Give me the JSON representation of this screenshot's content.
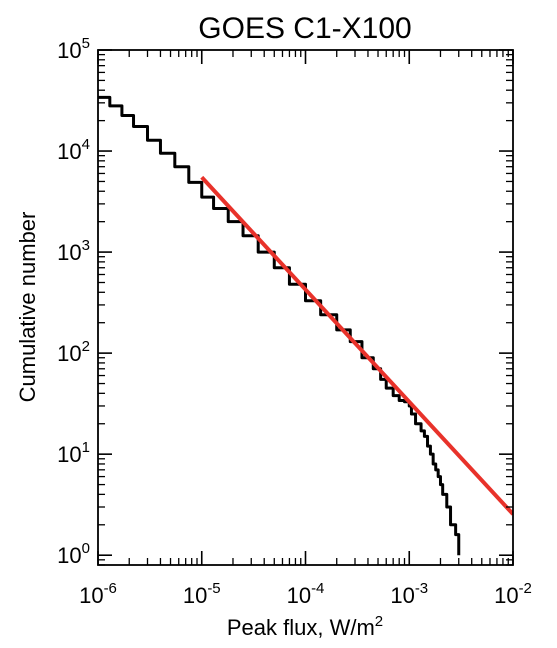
{
  "chart_data": {
    "type": "line",
    "title": "GOES C1-X100",
    "xlabel": "Peak flux, W/m",
    "xlabel_sup": "2",
    "ylabel": "Cumulative number",
    "x_scale": "log",
    "y_scale": "log",
    "xlim": [
      1e-06,
      0.01
    ],
    "ylim": [
      0.8,
      100000
    ],
    "x_ticks": [
      {
        "base": "10",
        "exp": "-6",
        "value": 1e-06
      },
      {
        "base": "10",
        "exp": "-5",
        "value": 1e-05
      },
      {
        "base": "10",
        "exp": "-4",
        "value": 0.0001
      },
      {
        "base": "10",
        "exp": "-3",
        "value": 0.001
      },
      {
        "base": "10",
        "exp": "-2",
        "value": 0.01
      }
    ],
    "y_ticks": [
      {
        "base": "10",
        "exp": "0",
        "value": 1
      },
      {
        "base": "10",
        "exp": "1",
        "value": 10
      },
      {
        "base": "10",
        "exp": "2",
        "value": 100
      },
      {
        "base": "10",
        "exp": "3",
        "value": 1000
      },
      {
        "base": "10",
        "exp": "4",
        "value": 10000
      },
      {
        "base": "10",
        "exp": "5",
        "value": 100000
      }
    ],
    "grid": false,
    "legend": "none",
    "series": [
      {
        "color": "#000000",
        "style": "step",
        "points": [
          [
            1e-06,
            34000
          ],
          [
            1.3e-06,
            28000
          ],
          [
            1.7e-06,
            22500
          ],
          [
            2.2e-06,
            17500
          ],
          [
            3e-06,
            12800
          ],
          [
            4e-06,
            9500
          ],
          [
            5.5e-06,
            7000
          ],
          [
            7.5e-06,
            4900
          ],
          [
            1e-05,
            3500
          ],
          [
            1.3e-05,
            2700
          ],
          [
            1.8e-05,
            2000
          ],
          [
            2.5e-05,
            1450
          ],
          [
            3.5e-05,
            1000
          ],
          [
            5e-05,
            700
          ],
          [
            7e-05,
            480
          ],
          [
            0.0001,
            330
          ],
          [
            0.00014,
            240
          ],
          [
            0.0002,
            170
          ],
          [
            0.00027,
            130
          ],
          [
            0.00035,
            90
          ],
          [
            0.00045,
            70
          ],
          [
            0.00053,
            55
          ],
          [
            0.0006,
            45
          ],
          [
            0.0007,
            38
          ],
          [
            0.0008,
            34
          ],
          [
            0.0009,
            33
          ],
          [
            0.001,
            30
          ],
          [
            0.00105,
            25
          ],
          [
            0.00115,
            20
          ],
          [
            0.0013,
            17
          ],
          [
            0.0014,
            15
          ],
          [
            0.0015,
            12
          ],
          [
            0.0016,
            10
          ],
          [
            0.0017,
            8
          ],
          [
            0.0018,
            7
          ],
          [
            0.0019,
            6
          ],
          [
            0.002,
            5
          ],
          [
            0.0021,
            4
          ],
          [
            0.0023,
            3
          ],
          [
            0.0025,
            2
          ],
          [
            0.0028,
            1.6
          ],
          [
            0.003,
            1.0
          ]
        ]
      },
      {
        "color": "#e8322a",
        "style": "line",
        "points": [
          [
            1e-05,
            5500
          ],
          [
            0.01,
            2.55
          ]
        ]
      }
    ]
  }
}
